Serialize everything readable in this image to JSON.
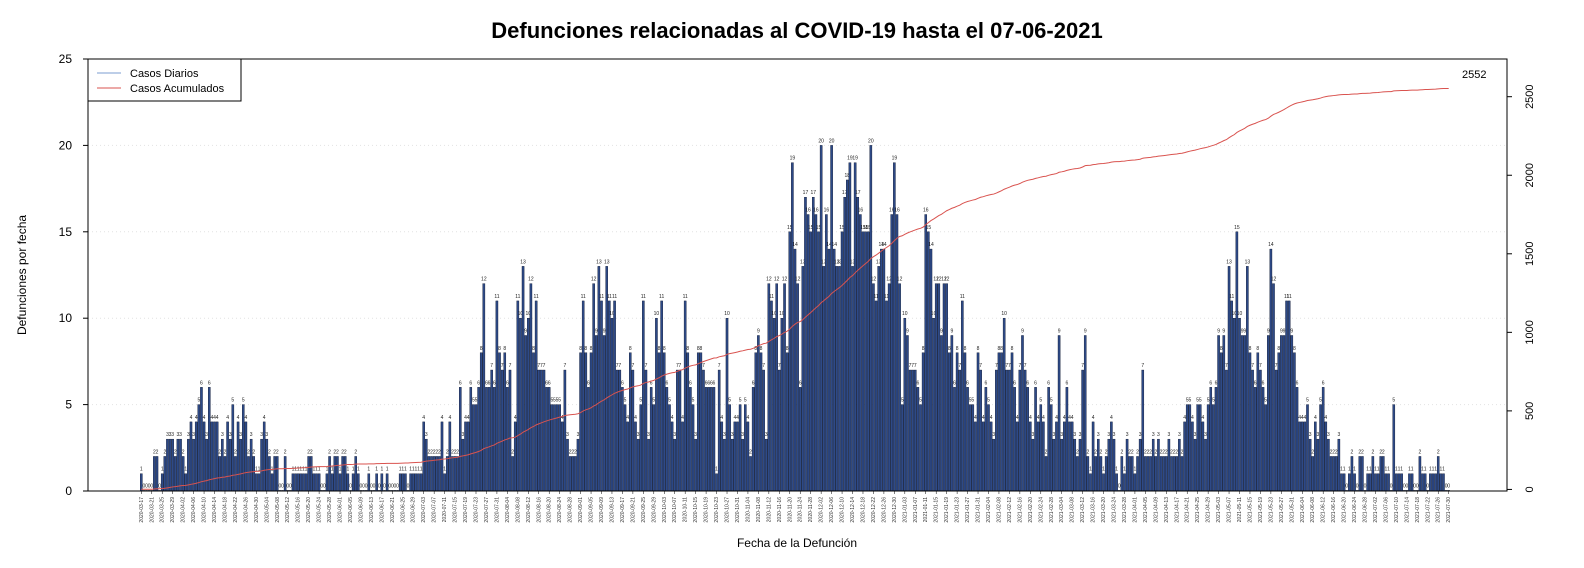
{
  "chart_data": {
    "type": "bar",
    "title": "Defunciones relacionadas al COVID-19 hasta el 07-06-2021",
    "xlabel": "Fecha de la Defunción",
    "ylabel": "Defunciones por fecha",
    "ylim": [
      0,
      25
    ],
    "y_ticks": [
      0,
      5,
      10,
      15,
      20,
      25
    ],
    "y2lim": [
      -10,
      2740
    ],
    "y2_ticks": [
      0,
      500,
      1000,
      1500,
      2000,
      2500
    ],
    "grid": true,
    "legend_position": "top-left",
    "x_range": [
      "2020-03-17",
      "2021-06-07"
    ],
    "end_label": "2552",
    "colors": {
      "bars": "#2e4a87",
      "bar_edge": "#0b1530",
      "cumulative_line": "#d9534f",
      "daily_legend_line": "#7b9cd1"
    },
    "series": [
      {
        "name": "Casos Diarios",
        "kind": "bar",
        "monthly_segments": [
          {
            "month": "2020-03",
            "values": [
              1,
              0,
              0,
              0,
              0,
              2,
              2,
              0,
              1,
              2,
              3,
              3,
              3,
              2,
              3
            ]
          },
          {
            "month": "2020-04",
            "values": [
              3,
              2,
              1,
              3,
              4,
              3,
              4,
              5,
              6,
              4,
              3,
              6,
              4,
              4,
              4,
              2,
              3,
              2,
              4,
              3,
              5,
              2,
              4,
              3,
              5,
              4,
              2,
              3,
              2,
              1
            ]
          },
          {
            "month": "2020-05",
            "values": [
              1,
              3,
              4,
              3,
              2,
              1,
              2,
              2,
              0,
              0,
              2,
              0,
              0,
              1,
              1,
              1,
              1,
              1,
              1,
              2,
              2,
              1,
              1,
              1,
              0,
              0,
              1,
              2,
              1,
              2,
              2
            ]
          },
          {
            "month": "2020-06",
            "values": [
              1,
              2,
              2,
              1,
              0,
              1,
              2,
              1,
              0,
              0,
              0,
              1,
              0,
              0,
              1,
              0,
              1,
              0,
              1,
              0,
              0,
              0,
              0,
              1,
              1,
              1,
              0,
              1,
              1,
              1
            ]
          },
          {
            "month": "2020-07",
            "values": [
              1,
              1,
              4,
              3,
              2,
              2,
              2,
              2,
              2,
              4,
              1,
              2,
              4,
              2,
              2,
              2,
              6,
              3,
              4,
              4,
              6,
              5,
              5,
              6,
              8,
              12,
              6,
              6,
              7,
              6,
              11
            ]
          },
          {
            "month": "2020-08",
            "values": [
              8,
              7,
              8,
              6,
              7,
              2,
              4,
              11,
              10,
              13,
              9,
              10,
              12,
              8,
              11,
              7,
              7,
              7,
              6,
              6,
              5,
              5,
              5,
              5,
              4,
              7,
              3,
              2,
              2,
              2,
              3
            ]
          },
          {
            "month": "2020-09",
            "values": [
              8,
              11,
              8,
              6,
              8,
              12,
              9,
              13,
              11,
              9,
              13,
              11,
              10,
              11,
              7,
              7,
              6,
              5,
              4,
              8,
              7,
              4,
              3,
              5,
              11,
              7,
              3,
              6,
              5,
              10
            ]
          },
          {
            "month": "2020-10",
            "values": [
              8,
              11,
              8,
              6,
              5,
              4,
              3,
              7,
              7,
              4,
              11,
              8,
              6,
              5,
              3,
              8,
              8,
              7,
              6,
              6,
              6,
              6,
              1,
              7,
              4,
              3,
              10,
              5,
              3,
              4,
              4
            ]
          },
          {
            "month": "2020-11",
            "values": [
              5,
              3,
              5,
              4,
              2,
              6,
              8,
              9,
              8,
              7,
              3,
              12,
              11,
              10,
              12,
              7,
              10,
              12,
              8,
              15,
              19,
              14,
              12,
              6,
              13,
              17,
              16,
              15,
              17,
              16
            ]
          },
          {
            "month": "2020-12",
            "values": [
              15,
              20,
              13,
              16,
              14,
              20,
              14,
              13,
              13,
              15,
              17,
              18,
              19,
              13,
              19,
              17,
              16,
              15,
              15,
              15,
              20,
              12,
              11,
              13,
              14,
              14,
              11,
              12,
              16,
              19,
              16
            ]
          },
          {
            "month": "2021-01",
            "values": [
              12,
              5,
              10,
              9,
              7,
              7,
              7,
              6,
              5,
              8,
              16,
              15,
              14,
              10,
              12,
              12,
              9,
              12,
              12,
              8,
              9,
              6,
              8,
              7,
              11,
              8,
              6,
              5,
              5,
              4,
              8
            ]
          },
          {
            "month": "2021-02",
            "values": [
              7,
              4,
              6,
              5,
              4,
              3,
              7,
              8,
              8,
              10,
              7,
              7,
              8,
              6,
              4,
              7,
              9,
              7,
              6,
              4,
              3,
              6,
              4,
              5,
              4,
              2,
              6,
              5,
              3
            ]
          },
          {
            "month": "2021-03",
            "values": [
              4,
              9,
              3,
              4,
              6,
              4,
              4,
              3,
              2,
              3,
              7,
              9,
              2,
              1,
              4,
              2,
              3,
              2,
              1,
              2,
              3,
              4,
              3,
              1,
              0,
              2,
              1,
              3,
              2,
              2,
              1
            ]
          },
          {
            "month": "2021-04",
            "values": [
              2,
              3,
              7,
              2,
              2,
              2,
              3,
              2,
              3,
              2,
              2,
              2,
              3,
              2,
              2,
              2,
              3,
              2,
              4,
              5,
              5,
              4,
              3,
              5,
              5,
              4,
              3,
              5,
              6,
              5
            ]
          },
          {
            "month": "2021-05",
            "values": [
              6,
              9,
              8,
              9,
              7,
              13,
              11,
              10,
              15,
              10,
              9,
              9,
              13,
              8,
              7,
              6,
              8,
              7,
              6,
              5,
              9,
              14,
              12,
              7,
              8,
              9,
              9,
              11,
              11,
              9,
              8
            ]
          },
          {
            "month": "2021-06",
            "values": [
              6,
              4,
              4,
              4,
              5,
              3,
              2,
              4,
              3,
              5,
              6,
              4,
              3,
              2,
              2,
              2,
              3
            ]
          },
          {
            "month": "2021-06b",
            "values": [
              1,
              1,
              0,
              1,
              2,
              1,
              0,
              2,
              2,
              0,
              1,
              1,
              2,
              1,
              1,
              2,
              2,
              1,
              1,
              0,
              5,
              1,
              1,
              1,
              0,
              0,
              1,
              1,
              0,
              0,
              2,
              1,
              1,
              0,
              1,
              1,
              1,
              2,
              1,
              1,
              0,
              0
            ]
          }
        ]
      },
      {
        "name": "Casos Acumulados",
        "kind": "line",
        "axis": "right",
        "total": 2552
      }
    ]
  }
}
